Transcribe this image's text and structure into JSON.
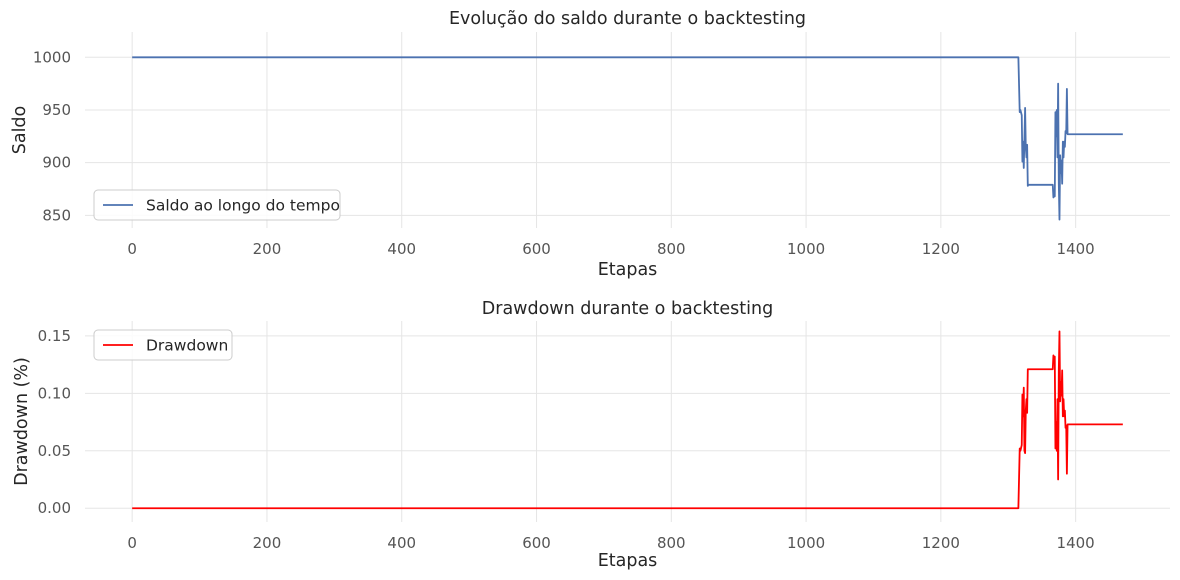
{
  "chart_data": [
    {
      "type": "line",
      "title": "Evolução do saldo durante o backtesting",
      "xlabel": "Etapas",
      "ylabel": "Saldo",
      "xlim": [
        -70,
        1540
      ],
      "ylim": [
        838,
        1024
      ],
      "xticks": [
        0,
        200,
        400,
        600,
        800,
        1000,
        1200,
        1400
      ],
      "yticks": [
        850,
        900,
        950,
        1000
      ],
      "grid": true,
      "legend_position": "lower-left",
      "series": [
        {
          "name": "Saldo ao longo do tempo",
          "color": "#4c72b0",
          "points": [
            [
              0,
              1000
            ],
            [
              1315,
              1000
            ],
            [
              1317,
              948
            ],
            [
              1318,
              950
            ],
            [
              1320,
              945
            ],
            [
              1321,
              901
            ],
            [
              1322,
              920
            ],
            [
              1323,
              895
            ],
            [
              1325,
              952
            ],
            [
              1326,
              915
            ],
            [
              1327,
              905
            ],
            [
              1328,
              917
            ],
            [
              1329,
              878
            ],
            [
              1330,
              879
            ],
            [
              1366,
              879
            ],
            [
              1367,
              867
            ],
            [
              1368,
              870
            ],
            [
              1369,
              868
            ],
            [
              1370,
              948
            ],
            [
              1371,
              925
            ],
            [
              1372,
              950
            ],
            [
              1373,
              905
            ],
            [
              1374,
              975
            ],
            [
              1375,
              880
            ],
            [
              1376,
              846
            ],
            [
              1377,
              907
            ],
            [
              1378,
              890
            ],
            [
              1379,
              902
            ],
            [
              1380,
              880
            ],
            [
              1381,
              920
            ],
            [
              1382,
              905
            ],
            [
              1383,
              920
            ],
            [
              1384,
              915
            ],
            [
              1385,
              930
            ],
            [
              1386,
              928
            ],
            [
              1387,
              970
            ],
            [
              1388,
              927
            ],
            [
              1470,
              927
            ]
          ]
        }
      ]
    },
    {
      "type": "line",
      "title": "Drawdown durante o backtesting",
      "xlabel": "Etapas",
      "ylabel": "Drawdown (%)",
      "xlim": [
        -70,
        1540
      ],
      "ylim": [
        -0.012,
        0.163
      ],
      "xticks": [
        0,
        200,
        400,
        600,
        800,
        1000,
        1200,
        1400
      ],
      "yticks": [
        0.0,
        0.05,
        0.1,
        0.15
      ],
      "grid": true,
      "legend_position": "upper-left",
      "series": [
        {
          "name": "Drawdown",
          "color": "#ff0000",
          "points": [
            [
              0,
              0
            ],
            [
              1315,
              0
            ],
            [
              1317,
              0.052
            ],
            [
              1318,
              0.05
            ],
            [
              1320,
              0.055
            ],
            [
              1321,
              0.099
            ],
            [
              1322,
              0.08
            ],
            [
              1323,
              0.105
            ],
            [
              1324,
              0.05
            ],
            [
              1325,
              0.048
            ],
            [
              1326,
              0.085
            ],
            [
              1327,
              0.095
            ],
            [
              1328,
              0.083
            ],
            [
              1329,
              0.121
            ],
            [
              1366,
              0.121
            ],
            [
              1367,
              0.133
            ],
            [
              1368,
              0.13
            ],
            [
              1369,
              0.132
            ],
            [
              1370,
              0.052
            ],
            [
              1371,
              0.075
            ],
            [
              1372,
              0.05
            ],
            [
              1373,
              0.095
            ],
            [
              1374,
              0.025
            ],
            [
              1375,
              0.12
            ],
            [
              1376,
              0.154
            ],
            [
              1377,
              0.093
            ],
            [
              1378,
              0.11
            ],
            [
              1379,
              0.098
            ],
            [
              1380,
              0.12
            ],
            [
              1381,
              0.08
            ],
            [
              1382,
              0.095
            ],
            [
              1383,
              0.08
            ],
            [
              1384,
              0.085
            ],
            [
              1385,
              0.07
            ],
            [
              1386,
              0.072
            ],
            [
              1387,
              0.03
            ],
            [
              1388,
              0.073
            ],
            [
              1470,
              0.073
            ]
          ]
        }
      ]
    }
  ]
}
